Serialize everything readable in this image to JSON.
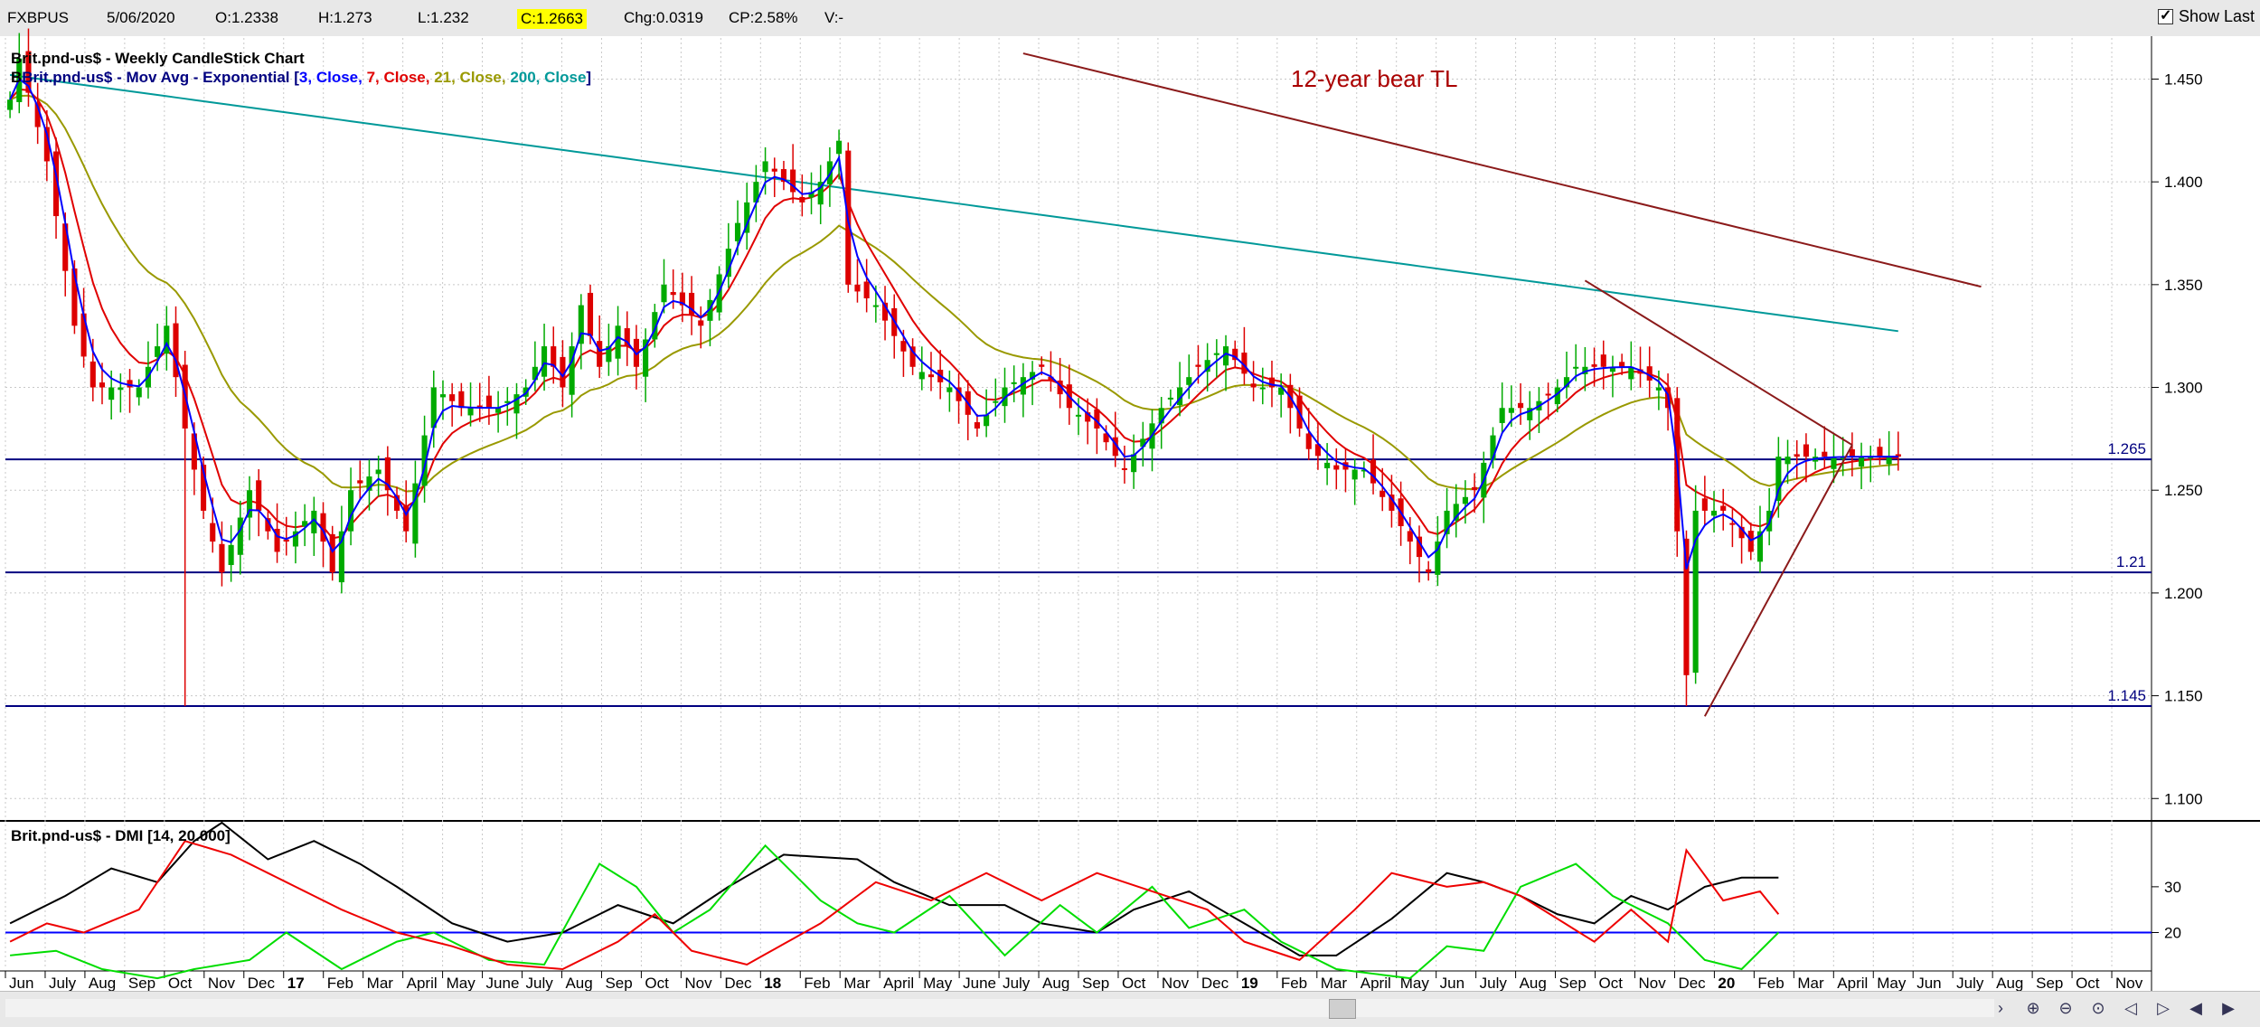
{
  "topbar": {
    "symbol": "FXBPUS",
    "date": "5/06/2020",
    "open": "O:1.2338",
    "high": "H:1.273",
    "low": "L:1.232",
    "close": "C:1.2663",
    "change": "Chg:0.0319",
    "change_pct": "CP:2.58%",
    "volume": "V:-",
    "show_last_label": "Show Last",
    "show_last_checked": true
  },
  "chart_data": [
    {
      "type": "candlestick",
      "title": "Brit.pnd-us$ - Weekly CandleStick Chart",
      "overlay_label": {
        "prefix": "B",
        "name": "Brit.pnd-us$ - Mov Avg - Exponential [",
        "parts": [
          {
            "text": "3, Close, ",
            "color": "#0000ff"
          },
          {
            "text": "7, Close, ",
            "color": "#e00000"
          },
          {
            "text": "21, Close, ",
            "color": "#999900"
          },
          {
            "text": "200, Close",
            "color": "#009999"
          }
        ],
        "suffix": "]"
      },
      "annotation": "12-year bear TL",
      "ylim": [
        1.09,
        1.47
      ],
      "yticks": [
        "1.450",
        "1.400",
        "1.350",
        "1.300",
        "1.250",
        "1.200",
        "1.150",
        "1.100"
      ],
      "horizontal_levels": [
        {
          "label": "1.265",
          "value": 1.265
        },
        {
          "label": "1.21",
          "value": 1.21
        },
        {
          "label": "1.145",
          "value": 1.145
        }
      ],
      "x_labels": [
        "Jun",
        "July",
        "Aug",
        "Sep",
        "Oct",
        "Nov",
        "Dec",
        "17",
        "Feb",
        "Mar",
        "April",
        "May",
        "June",
        "July",
        "Aug",
        "Sep",
        "Oct",
        "Nov",
        "Dec",
        "18",
        "Feb",
        "Mar",
        "April",
        "May",
        "June",
        "July",
        "Aug",
        "Sep",
        "Oct",
        "Nov",
        "Dec",
        "19",
        "Feb",
        "Mar",
        "April",
        "May",
        "Jun",
        "July",
        "Aug",
        "Sep",
        "Oct",
        "Nov",
        "Dec",
        "20",
        "Feb",
        "Mar",
        "April",
        "May",
        "Jun",
        "July",
        "Aug",
        "Sep",
        "Oct",
        "Nov"
      ],
      "x_bold_labels": [
        "17",
        "18",
        "19",
        "20"
      ],
      "weeks_total": 233,
      "weeks_with_data": 206,
      "close_anchors": [
        [
          0,
          1.44
        ],
        [
          1,
          1.46
        ],
        [
          4,
          1.41
        ],
        [
          7,
          1.33
        ],
        [
          9,
          1.3
        ],
        [
          14,
          1.3
        ],
        [
          17,
          1.33
        ],
        [
          19,
          1.28
        ],
        [
          21,
          1.24
        ],
        [
          23,
          1.21
        ],
        [
          26,
          1.25
        ],
        [
          29,
          1.22
        ],
        [
          33,
          1.24
        ],
        [
          35,
          1.21
        ],
        [
          37,
          1.25
        ],
        [
          40,
          1.26
        ],
        [
          43,
          1.23
        ],
        [
          46,
          1.3
        ],
        [
          49,
          1.29
        ],
        [
          53,
          1.29
        ],
        [
          56,
          1.3
        ],
        [
          58,
          1.32
        ],
        [
          60,
          1.3
        ],
        [
          62,
          1.34
        ],
        [
          64,
          1.31
        ],
        [
          66,
          1.33
        ],
        [
          68,
          1.31
        ],
        [
          71,
          1.35
        ],
        [
          75,
          1.33
        ],
        [
          79,
          1.38
        ],
        [
          82,
          1.41
        ],
        [
          86,
          1.39
        ],
        [
          88,
          1.4
        ],
        [
          90,
          1.42
        ],
        [
          91,
          1.35
        ],
        [
          94,
          1.34
        ],
        [
          98,
          1.31
        ],
        [
          102,
          1.3
        ],
        [
          105,
          1.28
        ],
        [
          108,
          1.3
        ],
        [
          112,
          1.31
        ],
        [
          115,
          1.29
        ],
        [
          118,
          1.28
        ],
        [
          121,
          1.26
        ],
        [
          125,
          1.29
        ],
        [
          129,
          1.31
        ],
        [
          132,
          1.32
        ],
        [
          135,
          1.3
        ],
        [
          138,
          1.3
        ],
        [
          141,
          1.27
        ],
        [
          144,
          1.26
        ],
        [
          147,
          1.26
        ],
        [
          150,
          1.24
        ],
        [
          154,
          1.21
        ],
        [
          156,
          1.24
        ],
        [
          159,
          1.25
        ],
        [
          162,
          1.29
        ],
        [
          165,
          1.29
        ],
        [
          168,
          1.3
        ],
        [
          170,
          1.31
        ],
        [
          173,
          1.31
        ],
        [
          176,
          1.31
        ],
        [
          179,
          1.3
        ],
        [
          180,
          1.29
        ],
        [
          181,
          1.23
        ],
        [
          182,
          1.16
        ],
        [
          183,
          1.24
        ],
        [
          186,
          1.24
        ],
        [
          189,
          1.22
        ],
        [
          191,
          1.24
        ],
        [
          192,
          1.2663
        ]
      ],
      "big_wicks": [
        {
          "week": 19,
          "low": 1.145
        },
        {
          "week": 182,
          "low": 1.145
        }
      ],
      "trendlines": [
        {
          "name": "12-year bear TL",
          "points": [
            [
              110,
              1.4625
            ],
            [
              214,
              1.349
            ]
          ]
        },
        {
          "name": "triangle-upper",
          "points": [
            [
              171,
              1.352
            ],
            [
              200,
              1.272
            ]
          ]
        },
        {
          "name": "triangle-lower",
          "points": [
            [
              184,
              1.14
            ],
            [
              200,
              1.272
            ]
          ]
        }
      ]
    },
    {
      "type": "line",
      "title": "Brit.pnd-us$ - DMI [14, 20.000]",
      "ylim": [
        12,
        44
      ],
      "yticks": [
        "30",
        "20"
      ],
      "threshold": 20,
      "series": [
        {
          "name": "ADX",
          "color": "#000000",
          "anchors": [
            [
              0,
              22
            ],
            [
              6,
              28
            ],
            [
              11,
              34
            ],
            [
              16,
              31
            ],
            [
              20,
              40
            ],
            [
              23,
              44
            ],
            [
              28,
              36
            ],
            [
              33,
              40
            ],
            [
              38,
              35
            ],
            [
              42,
              30
            ],
            [
              48,
              22
            ],
            [
              54,
              18
            ],
            [
              60,
              20
            ],
            [
              66,
              26
            ],
            [
              72,
              22
            ],
            [
              78,
              30
            ],
            [
              84,
              37
            ],
            [
              92,
              36
            ],
            [
              96,
              31
            ],
            [
              102,
              26
            ],
            [
              108,
              26
            ],
            [
              112,
              22
            ],
            [
              118,
              20
            ],
            [
              122,
              25
            ],
            [
              128,
              29
            ],
            [
              134,
              22
            ],
            [
              140,
              15
            ],
            [
              144,
              15
            ],
            [
              150,
              23
            ],
            [
              156,
              33
            ],
            [
              160,
              31
            ],
            [
              164,
              28
            ],
            [
              168,
              24
            ],
            [
              172,
              22
            ],
            [
              176,
              28
            ],
            [
              180,
              25
            ],
            [
              184,
              30
            ],
            [
              188,
              32
            ],
            [
              192,
              32
            ]
          ]
        },
        {
          "name": "+DI",
          "color": "#00dd00",
          "anchors": [
            [
              0,
              15
            ],
            [
              5,
              16
            ],
            [
              10,
              12
            ],
            [
              16,
              10
            ],
            [
              20,
              12
            ],
            [
              26,
              14
            ],
            [
              30,
              20
            ],
            [
              36,
              12
            ],
            [
              42,
              18
            ],
            [
              46,
              20
            ],
            [
              52,
              14
            ],
            [
              58,
              13
            ],
            [
              64,
              35
            ],
            [
              68,
              30
            ],
            [
              72,
              20
            ],
            [
              76,
              25
            ],
            [
              82,
              39
            ],
            [
              88,
              27
            ],
            [
              92,
              22
            ],
            [
              96,
              20
            ],
            [
              102,
              28
            ],
            [
              108,
              15
            ],
            [
              114,
              26
            ],
            [
              118,
              20
            ],
            [
              124,
              30
            ],
            [
              128,
              21
            ],
            [
              134,
              25
            ],
            [
              138,
              18
            ],
            [
              144,
              12
            ],
            [
              152,
              10
            ],
            [
              156,
              17
            ],
            [
              160,
              16
            ],
            [
              164,
              30
            ],
            [
              170,
              35
            ],
            [
              174,
              28
            ],
            [
              180,
              22
            ],
            [
              184,
              14
            ],
            [
              188,
              12
            ],
            [
              192,
              20
            ]
          ]
        },
        {
          "name": "-DI",
          "color": "#ee0000",
          "anchors": [
            [
              0,
              18
            ],
            [
              4,
              22
            ],
            [
              8,
              20
            ],
            [
              14,
              25
            ],
            [
              19,
              40
            ],
            [
              24,
              37
            ],
            [
              30,
              31
            ],
            [
              36,
              25
            ],
            [
              42,
              20
            ],
            [
              48,
              17
            ],
            [
              54,
              13
            ],
            [
              60,
              12
            ],
            [
              66,
              18
            ],
            [
              70,
              24
            ],
            [
              74,
              16
            ],
            [
              80,
              13
            ],
            [
              88,
              22
            ],
            [
              94,
              31
            ],
            [
              100,
              27
            ],
            [
              106,
              33
            ],
            [
              112,
              27
            ],
            [
              118,
              33
            ],
            [
              124,
              29
            ],
            [
              130,
              25
            ],
            [
              134,
              18
            ],
            [
              140,
              14
            ],
            [
              146,
              25
            ],
            [
              150,
              33
            ],
            [
              156,
              30
            ],
            [
              160,
              31
            ],
            [
              164,
              28
            ],
            [
              168,
              23
            ],
            [
              172,
              18
            ],
            [
              176,
              25
            ],
            [
              180,
              18
            ],
            [
              182,
              38
            ],
            [
              186,
              27
            ],
            [
              190,
              29
            ],
            [
              192,
              24
            ]
          ]
        }
      ]
    }
  ],
  "nav_buttons": [
    {
      "name": "scroll-right-button",
      "glyph": "›"
    },
    {
      "name": "zoom-in-button",
      "glyph": "⊕"
    },
    {
      "name": "zoom-out-button",
      "glyph": "⊖"
    },
    {
      "name": "zoom-fit-button",
      "glyph": "⊙"
    },
    {
      "name": "page-back-button",
      "glyph": "◁"
    },
    {
      "name": "page-forward-button",
      "glyph": "▷"
    },
    {
      "name": "step-back-button",
      "glyph": "◀"
    },
    {
      "name": "step-forward-button",
      "glyph": "▶"
    }
  ]
}
